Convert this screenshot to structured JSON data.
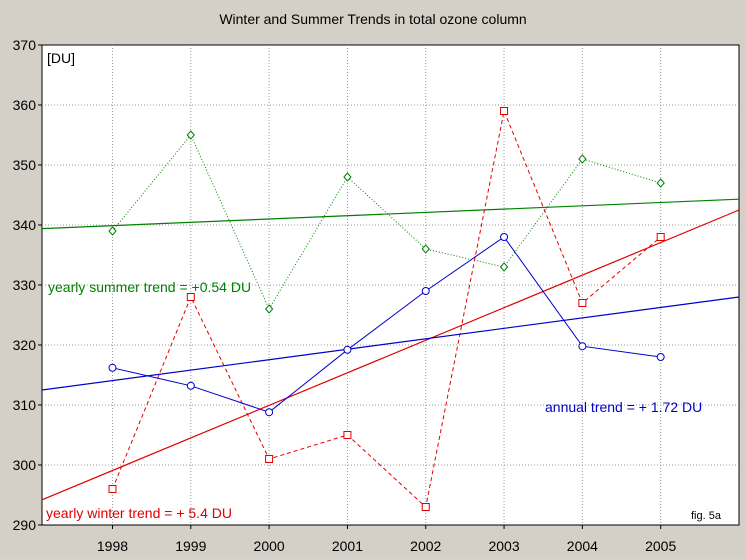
{
  "chart_data": {
    "type": "line",
    "title": "Winter and Summer Trends in total ozone column",
    "ylabel": "[DU]",
    "xlim": [
      1997.1,
      2006.0
    ],
    "ylim": [
      290,
      370
    ],
    "x_ticks": [
      1998,
      1999,
      2000,
      2001,
      2002,
      2003,
      2004,
      2005
    ],
    "y_ticks": [
      290,
      300,
      310,
      320,
      330,
      340,
      350,
      360,
      370
    ],
    "grid": true,
    "series": [
      {
        "key": "summer",
        "color": "#008000",
        "marker": "diamond",
        "dash": "dotted",
        "x": [
          1998,
          1999,
          2000,
          2001,
          2002,
          2003,
          2004,
          2005
        ],
        "values": [
          339,
          355,
          326,
          348,
          336,
          333,
          351,
          347
        ]
      },
      {
        "key": "winter",
        "color": "#e00000",
        "marker": "square",
        "dash": "dashed",
        "x": [
          1998,
          1999,
          2000,
          2001,
          2002,
          2003,
          2004,
          2005
        ],
        "values": [
          296,
          328,
          301,
          305,
          293,
          359,
          327,
          338
        ]
      },
      {
        "key": "annual",
        "color": "#0000cc",
        "marker": "circle",
        "dash": "solid",
        "x": [
          1998,
          1999,
          2000,
          2001,
          2002,
          2003,
          2004,
          2005
        ],
        "values": [
          316.2,
          313.2,
          308.8,
          319.2,
          329,
          338,
          319.8,
          318
        ]
      }
    ],
    "trend_lines": [
      {
        "key": "summer-trend",
        "color": "#008000",
        "x": [
          1997.1,
          2006.0
        ],
        "values": [
          339.4,
          344.3
        ]
      },
      {
        "key": "winter-trend",
        "color": "#e00000",
        "x": [
          1997.1,
          2006.0
        ],
        "values": [
          294.2,
          342.5
        ]
      },
      {
        "key": "annual-trend",
        "color": "#0000cc",
        "x": [
          1997.1,
          2006.0
        ],
        "values": [
          312.5,
          328.0
        ]
      }
    ],
    "annotations": {
      "summer_trend": "yearly summer trend = +0.54 DU",
      "winter_trend": "yearly winter trend = + 5.4 DU",
      "annual_trend": "annual trend = + 1.72 DU",
      "fig_label": "fig. 5a"
    }
  }
}
